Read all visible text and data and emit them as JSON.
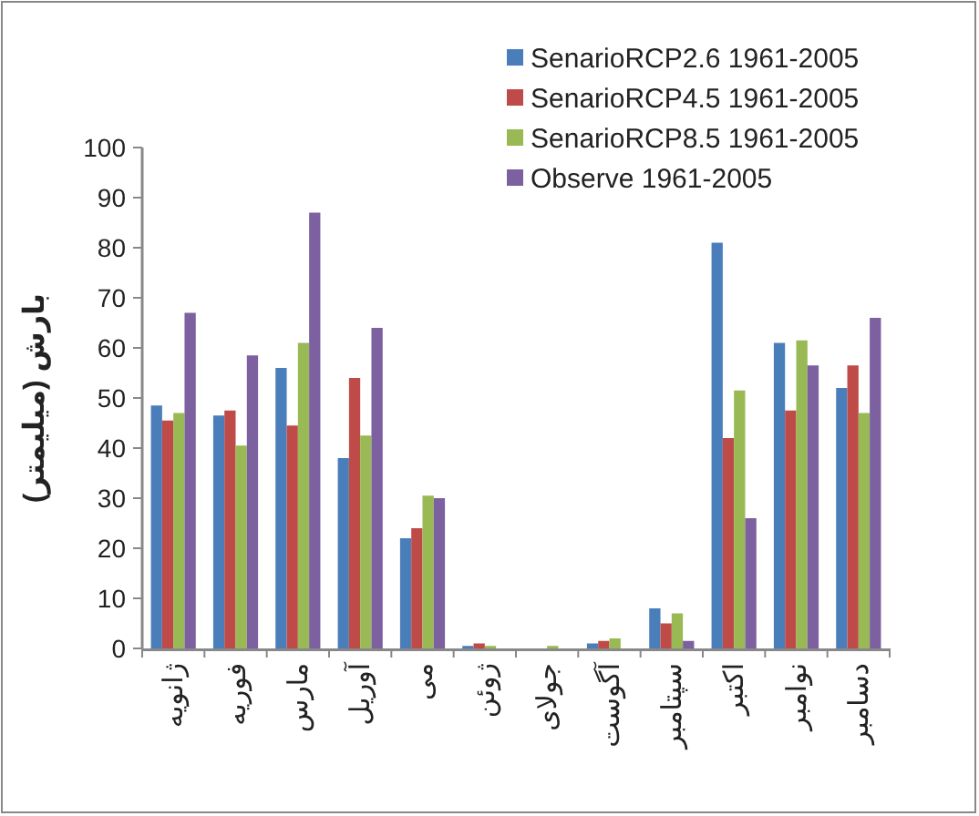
{
  "chart_data": {
    "type": "bar",
    "ylabel": "بارش (میلیمتر)",
    "categories": [
      "ژانویه",
      "فوریه",
      "مارس",
      "آوریل",
      "می",
      "ژوئن",
      "جولای",
      "آگوست",
      "سپتامبر",
      "اکتبر",
      "نوامبر",
      "دسامبر"
    ],
    "series": [
      {
        "name": "SenarioRCP2.6 1961-2005",
        "color": "#4a7ebb",
        "values": [
          48.5,
          46.5,
          56,
          38,
          22,
          0.5,
          0,
          1,
          8,
          81,
          61,
          52
        ]
      },
      {
        "name": "SenarioRCP4.5 1961-2005",
        "color": "#be4b48",
        "values": [
          45.5,
          47.5,
          44.5,
          54,
          24,
          1,
          0,
          1.5,
          5,
          42,
          47.5,
          56.5
        ]
      },
      {
        "name": "SenarioRCP8.5 1961-2005",
        "color": "#98b954",
        "values": [
          47,
          40.5,
          61,
          42.5,
          30.5,
          0.5,
          0.5,
          2,
          7,
          51.5,
          61.5,
          47
        ]
      },
      {
        "name": "Observe 1961-2005",
        "color": "#7d60a0",
        "values": [
          67,
          58.5,
          87,
          64,
          30,
          0,
          0,
          0,
          1.5,
          26,
          56.5,
          66
        ]
      }
    ],
    "ylim": [
      0,
      100
    ],
    "yticks": [
      0,
      10,
      20,
      30,
      40,
      50,
      60,
      70,
      80,
      90,
      100
    ],
    "grid": false,
    "legend": "top right"
  }
}
